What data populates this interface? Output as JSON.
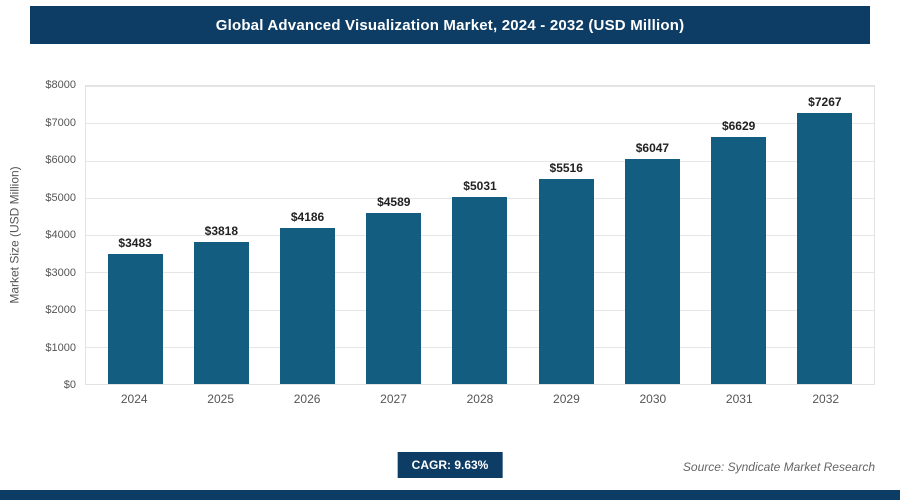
{
  "header": {
    "title": "Global Advanced Visualization Market, 2024 - 2032 (USD Million)"
  },
  "chart_data": {
    "type": "bar",
    "title": "Global Advanced Visualization Market, 2024 - 2032 (USD Million)",
    "categories": [
      "2024",
      "2025",
      "2026",
      "2027",
      "2028",
      "2029",
      "2030",
      "2031",
      "2032"
    ],
    "values": [
      3483,
      3818,
      4186,
      4589,
      5031,
      5516,
      6047,
      6629,
      7267
    ],
    "labels": [
      "$3483",
      "$3818",
      "$4186",
      "$4589",
      "$5031",
      "$5516",
      "$6047",
      "$6629",
      "$7267"
    ],
    "xlabel": "",
    "ylabel": "Market Size (USD Million)",
    "ylim": [
      0,
      8000
    ],
    "ytick_step": 1000,
    "yticks": [
      "$0",
      "$1000",
      "$2000",
      "$3000",
      "$4000",
      "$5000",
      "$6000",
      "$7000",
      "$8000"
    ],
    "grid": true,
    "legend": "none",
    "bar_color": "#135e80"
  },
  "footer": {
    "cagr_label": "CAGR: 9.63%",
    "source": "Source: Syndicate Market Research"
  },
  "colors": {
    "banner": "#0d3c64",
    "bar": "#135e80",
    "gridline": "#e6e6e6"
  }
}
